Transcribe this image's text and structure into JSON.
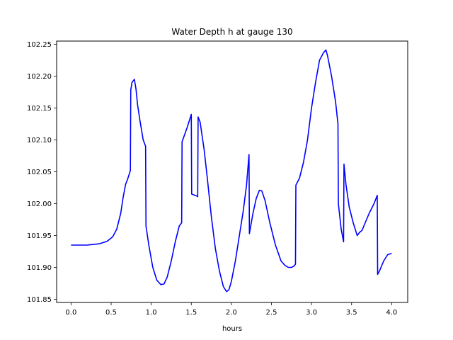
{
  "chart_data": {
    "type": "line",
    "title": "Water Depth h at gauge 130",
    "xlabel": "hours",
    "ylabel": "",
    "xlim": [
      -0.18,
      4.2
    ],
    "ylim": [
      101.845,
      102.255
    ],
    "xticks": [
      0.0,
      0.5,
      1.0,
      1.5,
      2.0,
      2.5,
      3.0,
      3.5,
      4.0
    ],
    "xtick_labels": [
      "0.0",
      "0.5",
      "1.0",
      "1.5",
      "2.0",
      "2.5",
      "3.0",
      "3.5",
      "4.0"
    ],
    "yticks": [
      101.85,
      101.9,
      101.95,
      102.0,
      102.05,
      102.1,
      102.15,
      102.2,
      102.25
    ],
    "ytick_labels": [
      "101.85",
      "101.90",
      "101.95",
      "102.00",
      "102.05",
      "102.10",
      "102.15",
      "102.20",
      "102.25"
    ],
    "grid": false,
    "series": [
      {
        "color": "#0000ff",
        "x": [
          0.0,
          0.2,
          0.35,
          0.45,
          0.52,
          0.57,
          0.62,
          0.65,
          0.68,
          0.71,
          0.74,
          0.745,
          0.76,
          0.79,
          0.81,
          0.83,
          0.86,
          0.9,
          0.93,
          0.935,
          0.97,
          1.02,
          1.07,
          1.12,
          1.16,
          1.2,
          1.25,
          1.3,
          1.35,
          1.38,
          1.385,
          1.45,
          1.5,
          1.505,
          1.57,
          1.58,
          1.585,
          1.61,
          1.66,
          1.7,
          1.75,
          1.8,
          1.85,
          1.9,
          1.94,
          1.97,
          2.0,
          2.05,
          2.1,
          2.15,
          2.19,
          2.22,
          2.225,
          2.27,
          2.31,
          2.35,
          2.38,
          2.42,
          2.48,
          2.55,
          2.62,
          2.67,
          2.71,
          2.75,
          2.78,
          2.8,
          2.805,
          2.85,
          2.9,
          2.95,
          3.0,
          3.05,
          3.1,
          3.15,
          3.18,
          3.2,
          3.25,
          3.3,
          3.33,
          3.335,
          3.37,
          3.4,
          3.405,
          3.43,
          3.47,
          3.52,
          3.57,
          3.6,
          3.63,
          3.67,
          3.72,
          3.78,
          3.82,
          3.825,
          3.85,
          3.9,
          3.95,
          4.0
        ],
        "y": [
          101.935,
          101.935,
          101.937,
          101.941,
          101.948,
          101.96,
          101.985,
          102.01,
          102.03,
          102.04,
          102.052,
          102.178,
          102.19,
          102.195,
          102.18,
          102.155,
          102.13,
          102.1,
          102.09,
          101.965,
          101.935,
          101.9,
          101.88,
          101.873,
          101.874,
          101.885,
          101.91,
          101.94,
          101.965,
          101.97,
          102.097,
          102.12,
          102.14,
          102.015,
          102.012,
          102.011,
          102.136,
          102.128,
          102.085,
          102.04,
          101.98,
          101.93,
          101.895,
          101.87,
          101.862,
          101.865,
          101.878,
          101.91,
          101.95,
          101.99,
          102.03,
          102.077,
          101.953,
          101.985,
          102.008,
          102.021,
          102.02,
          102.005,
          101.97,
          101.935,
          101.91,
          101.903,
          101.9,
          101.9,
          101.902,
          101.905,
          102.029,
          102.04,
          102.065,
          102.1,
          102.15,
          102.19,
          102.225,
          102.237,
          102.241,
          102.232,
          102.2,
          102.16,
          102.125,
          102.0,
          101.96,
          101.94,
          102.062,
          102.03,
          101.995,
          101.97,
          101.95,
          101.955,
          101.958,
          101.97,
          101.985,
          102.0,
          102.013,
          101.889,
          101.895,
          101.91,
          101.92,
          101.922
        ]
      }
    ]
  }
}
